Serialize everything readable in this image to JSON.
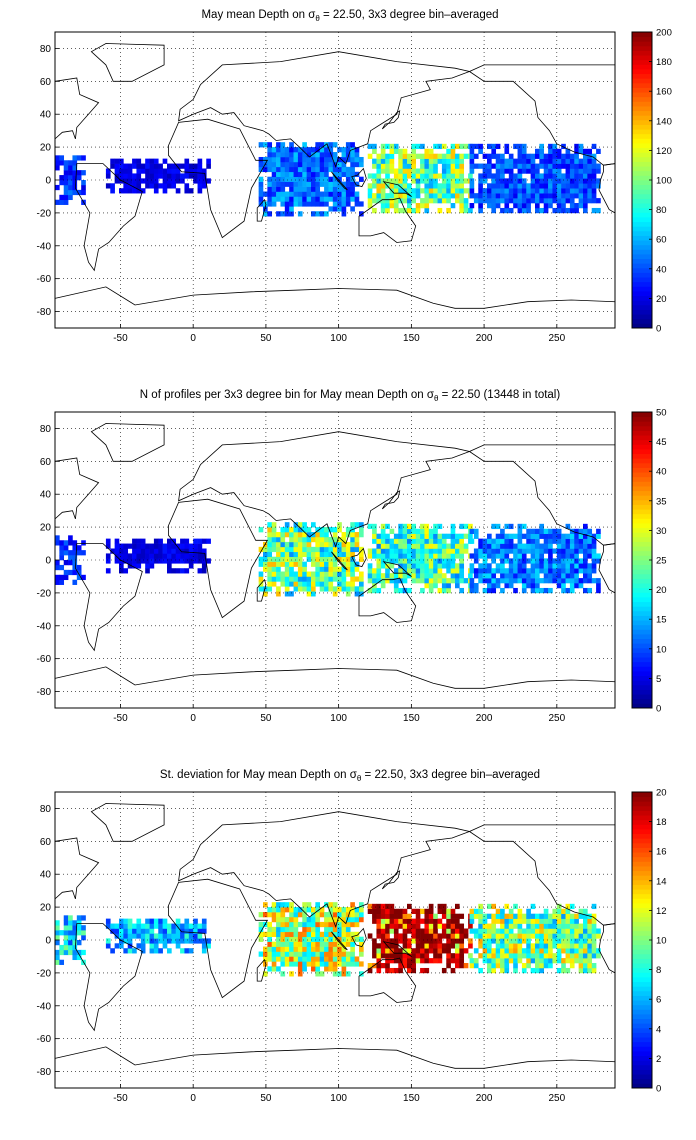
{
  "figure": {
    "background": "#ffffff"
  },
  "chart_data": [
    {
      "type": "heatmap",
      "title": "May mean Depth on σθ = 22.50, 3x3 degree bin–averaged",
      "title_main": "May mean Depth on ",
      "title_sigma": "σ",
      "title_sub": "θ",
      "title_rest": " = 22.50, 3x3 degree bin–averaged",
      "xlim": [
        -95,
        290
      ],
      "ylim": [
        -90,
        90
      ],
      "xticks": [
        -50,
        0,
        50,
        100,
        150,
        200,
        250
      ],
      "yticks": [
        80,
        60,
        40,
        20,
        0,
        -20,
        -40,
        -60,
        -80
      ],
      "grid": true,
      "colorbar": {
        "min": 0,
        "max": 200,
        "ticks": [
          200,
          180,
          160,
          140,
          120,
          100,
          80,
          60,
          40,
          20,
          0
        ],
        "colormap": "jet"
      },
      "bin_size_deg": 3,
      "regions": [
        {
          "name": "pacific-west",
          "lon": [
            120,
            190
          ],
          "lat": [
            -20,
            20
          ],
          "value": 95
        },
        {
          "name": "pacific-east",
          "lon": [
            190,
            280
          ],
          "lat": [
            -20,
            20
          ],
          "value": 40
        },
        {
          "name": "indian-ocean",
          "lon": [
            45,
            115
          ],
          "lat": [
            -22,
            22
          ],
          "value": 45
        },
        {
          "name": "atlantic-equatorial",
          "lon": [
            -60,
            10
          ],
          "lat": [
            -8,
            12
          ],
          "value": 20
        },
        {
          "name": "atlantic-west",
          "lon": [
            -95,
            -75
          ],
          "lat": [
            -15,
            15
          ],
          "value": 35
        }
      ]
    },
    {
      "type": "heatmap",
      "title": "N of profiles per 3x3 degree bin for May mean Depth on σθ = 22.50 (13448 in total)",
      "title_main": "N of profiles per 3x3 degree bin for May mean Depth on ",
      "title_sigma": "σ",
      "title_sub": "θ",
      "title_rest": " = 22.50 (13448 in total)",
      "xlim": [
        -95,
        290
      ],
      "ylim": [
        -90,
        90
      ],
      "xticks": [
        -50,
        0,
        50,
        100,
        150,
        200,
        250
      ],
      "yticks": [
        80,
        60,
        40,
        20,
        0,
        -20,
        -40,
        -60,
        -80
      ],
      "grid": true,
      "colorbar": {
        "min": 0,
        "max": 50,
        "ticks": [
          50,
          45,
          40,
          35,
          30,
          25,
          20,
          15,
          10,
          5,
          0
        ],
        "colormap": "jet"
      },
      "bin_size_deg": 3,
      "regions": [
        {
          "name": "pacific-west",
          "lon": [
            120,
            190
          ],
          "lat": [
            -20,
            20
          ],
          "value": 22
        },
        {
          "name": "pacific-east",
          "lon": [
            190,
            280
          ],
          "lat": [
            -20,
            20
          ],
          "value": 12
        },
        {
          "name": "indian-ocean",
          "lon": [
            45,
            115
          ],
          "lat": [
            -22,
            22
          ],
          "value": 24
        },
        {
          "name": "atlantic-equatorial",
          "lon": [
            -60,
            10
          ],
          "lat": [
            -8,
            12
          ],
          "value": 5
        },
        {
          "name": "atlantic-west",
          "lon": [
            -95,
            -75
          ],
          "lat": [
            -15,
            15
          ],
          "value": 8
        }
      ]
    },
    {
      "type": "heatmap",
      "title": "St. deviation for May mean Depth on σθ = 22.50, 3x3 degree bin–averaged",
      "title_main": "St. deviation for May mean Depth on ",
      "title_sigma": "σ",
      "title_sub": "θ",
      "title_rest": " = 22.50, 3x3 degree bin–averaged",
      "xlim": [
        -95,
        290
      ],
      "ylim": [
        -90,
        90
      ],
      "xticks": [
        -50,
        0,
        50,
        100,
        150,
        200,
        250
      ],
      "yticks": [
        80,
        60,
        40,
        20,
        0,
        -20,
        -40,
        -60,
        -80
      ],
      "grid": true,
      "colorbar": {
        "min": 0,
        "max": 20,
        "ticks": [
          20,
          18,
          16,
          14,
          12,
          10,
          8,
          6,
          4,
          2,
          0
        ],
        "colormap": "jet"
      },
      "bin_size_deg": 3,
      "regions": [
        {
          "name": "pacific-west",
          "lon": [
            120,
            190
          ],
          "lat": [
            -20,
            20
          ],
          "value": 18
        },
        {
          "name": "pacific-east",
          "lon": [
            190,
            280
          ],
          "lat": [
            -20,
            20
          ],
          "value": 10
        },
        {
          "name": "indian-ocean",
          "lon": [
            45,
            115
          ],
          "lat": [
            -22,
            22
          ],
          "value": 11
        },
        {
          "name": "atlantic-equatorial",
          "lon": [
            -60,
            10
          ],
          "lat": [
            -8,
            12
          ],
          "value": 6
        },
        {
          "name": "atlantic-west",
          "lon": [
            -95,
            -75
          ],
          "lat": [
            -15,
            15
          ],
          "value": 7
        }
      ]
    }
  ]
}
